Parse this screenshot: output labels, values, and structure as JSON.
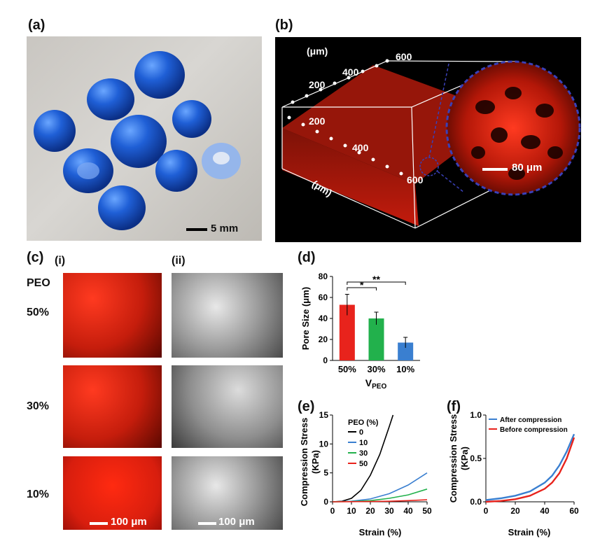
{
  "panels": {
    "a": {
      "label": "(a)",
      "scale": "5 mm"
    },
    "b": {
      "label": "(b)",
      "unit_top": "(μm)",
      "unit_side": "(μm)",
      "top_ticks": [
        "200",
        "400",
        "600"
      ],
      "side_ticks": [
        "200",
        "400",
        "600"
      ],
      "zoom_scale": "80 μm"
    },
    "c": {
      "label": "(c)",
      "sub_i": "(i)",
      "sub_ii": "(ii)",
      "row_title": "PEO",
      "rows": [
        "50%",
        "30%",
        "10%"
      ],
      "scale_i": "100 μm",
      "scale_ii": "100 μm"
    },
    "d": {
      "label": "(d)"
    },
    "e": {
      "label": "(e)"
    },
    "f": {
      "label": "(f)"
    }
  },
  "colors": {
    "red": "#e8231c",
    "green": "#22b14c",
    "blue": "#3a7fd0",
    "black": "#000000",
    "hydrogel": "#1f5fd6",
    "fluor": "#d81e0e"
  },
  "chart_data": [
    {
      "id": "d",
      "type": "bar",
      "categories": [
        "50%",
        "30%",
        "10%"
      ],
      "values": [
        53,
        40,
        17
      ],
      "errors": [
        10,
        6,
        5
      ],
      "bar_colors": [
        "#e8231c",
        "#22b14c",
        "#3a7fd0"
      ],
      "ylabel": "Pore Size (μm)",
      "xlabel_main": "V",
      "xlabel_sub": "PEO",
      "ylim": [
        0,
        80
      ],
      "yticks": [
        0,
        20,
        40,
        60,
        80
      ],
      "significance": [
        {
          "pair": [
            "50%",
            "30%"
          ],
          "label": "*"
        },
        {
          "pair": [
            "50%",
            "10%"
          ],
          "label": "**"
        }
      ]
    },
    {
      "id": "e",
      "type": "line",
      "xlabel": "Strain (%)",
      "ylabel_line1": "Compression Stress",
      "ylabel_line2": "(KPa)",
      "xlim": [
        0,
        50
      ],
      "ylim": [
        0,
        15
      ],
      "xticks": [
        0,
        10,
        20,
        30,
        40,
        50
      ],
      "yticks": [
        0,
        5,
        10,
        15
      ],
      "legend_title": "PEO (%)",
      "legend_position": "top-left",
      "series": [
        {
          "name": "0",
          "color": "#000000",
          "x": [
            0,
            5,
            10,
            15,
            20,
            25,
            30,
            32
          ],
          "y": [
            0,
            0.1,
            0.6,
            2.0,
            4.6,
            8.2,
            13.0,
            15.0
          ]
        },
        {
          "name": "10",
          "color": "#3a7fd0",
          "x": [
            0,
            10,
            20,
            30,
            40,
            50
          ],
          "y": [
            0,
            0.1,
            0.5,
            1.4,
            2.9,
            5.0
          ]
        },
        {
          "name": "30",
          "color": "#22b14c",
          "x": [
            0,
            10,
            20,
            30,
            40,
            50
          ],
          "y": [
            0,
            0.05,
            0.2,
            0.6,
            1.2,
            2.2
          ]
        },
        {
          "name": "50",
          "color": "#e8231c",
          "x": [
            0,
            10,
            20,
            30,
            40,
            50
          ],
          "y": [
            0,
            0.02,
            0.05,
            0.1,
            0.2,
            0.35
          ]
        }
      ]
    },
    {
      "id": "f",
      "type": "line",
      "xlabel": "Strain (%)",
      "ylabel_line1": "Compression Stress",
      "ylabel_line2": "(KPa)",
      "xlim": [
        0,
        60
      ],
      "ylim": [
        0,
        1.0
      ],
      "xticks": [
        0,
        20,
        40,
        60
      ],
      "yticks": [
        0.0,
        0.5,
        1.0
      ],
      "legend_position": "top-right",
      "series": [
        {
          "name": "After compression",
          "color": "#3a7fd0",
          "x": [
            0,
            10,
            20,
            30,
            40,
            45,
            50,
            55,
            60
          ],
          "y": [
            0.02,
            0.04,
            0.07,
            0.12,
            0.22,
            0.3,
            0.42,
            0.58,
            0.78
          ]
        },
        {
          "name": "Before compression",
          "color": "#e8231c",
          "x": [
            0,
            10,
            20,
            30,
            40,
            45,
            50,
            55,
            60
          ],
          "y": [
            0.0,
            0.01,
            0.03,
            0.07,
            0.15,
            0.22,
            0.33,
            0.5,
            0.74
          ]
        }
      ]
    }
  ]
}
